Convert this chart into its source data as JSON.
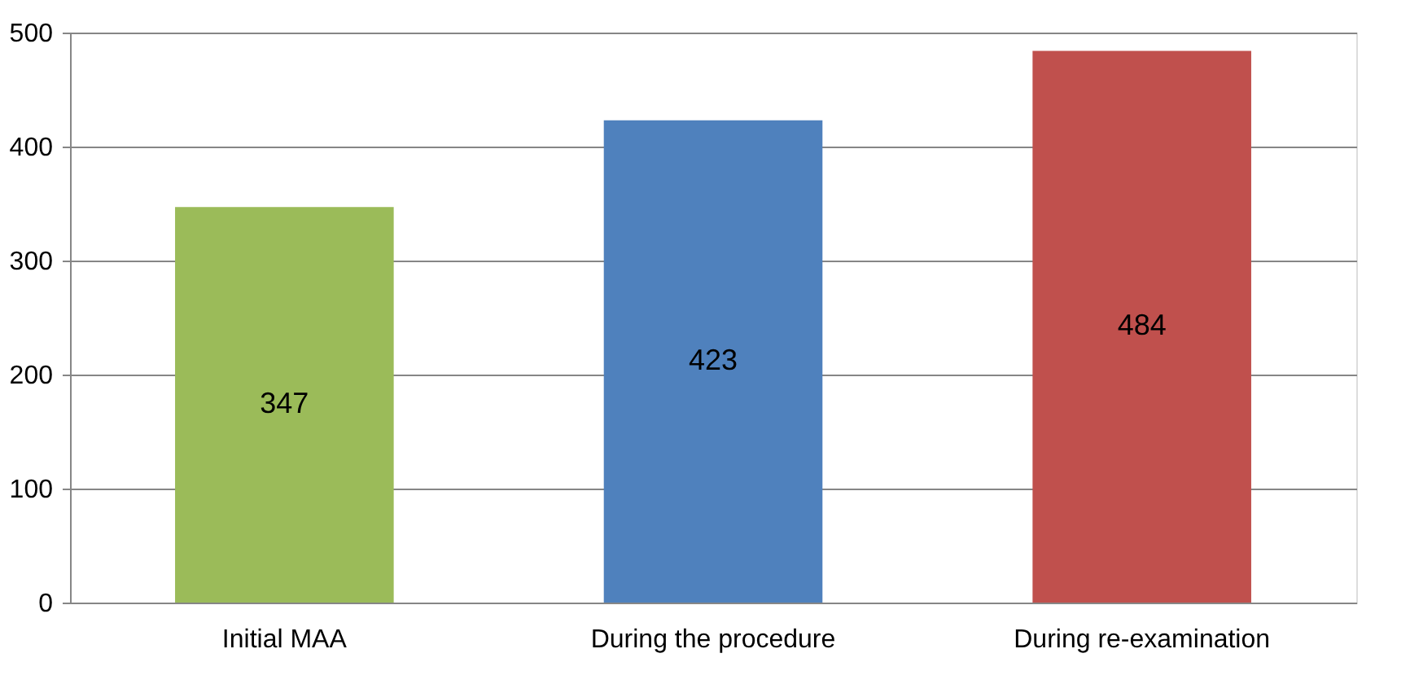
{
  "chart_data": {
    "type": "bar",
    "categories": [
      "Initial MAA",
      "During the procedure",
      "During re-examination"
    ],
    "values": [
      347,
      423,
      484
    ],
    "colors": [
      "#9bbb59",
      "#4f81bd",
      "#c0504d"
    ],
    "ylim": [
      0,
      500
    ],
    "yticks": [
      0,
      100,
      200,
      300,
      400,
      500
    ],
    "grid": "y",
    "data_labels": true
  }
}
